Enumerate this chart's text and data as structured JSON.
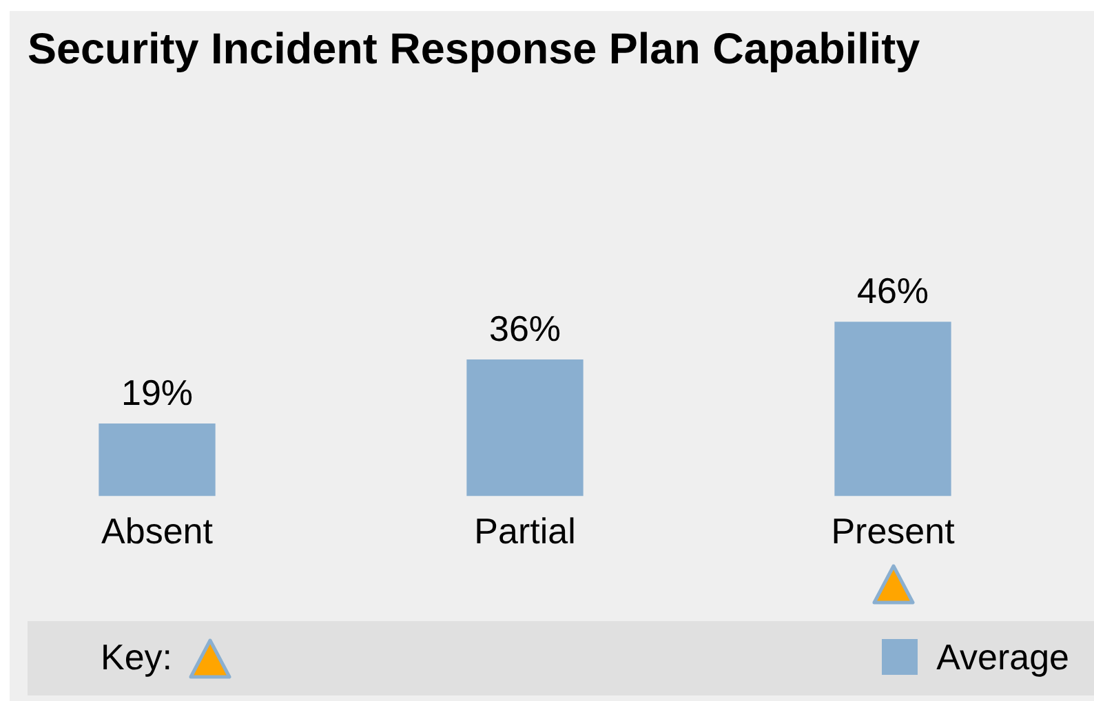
{
  "chart_data": {
    "type": "bar",
    "title": "Security Incident Response Plan Capability",
    "categories": [
      "Absent",
      "Partial",
      "Present"
    ],
    "series": [
      {
        "name": "Average",
        "color": "#8aafd0",
        "values": [
          19,
          36,
          46
        ],
        "value_labels": [
          "19%",
          "36%",
          "46%"
        ]
      }
    ],
    "legend": "bottom",
    "legend_title": "Key:"
  }
}
